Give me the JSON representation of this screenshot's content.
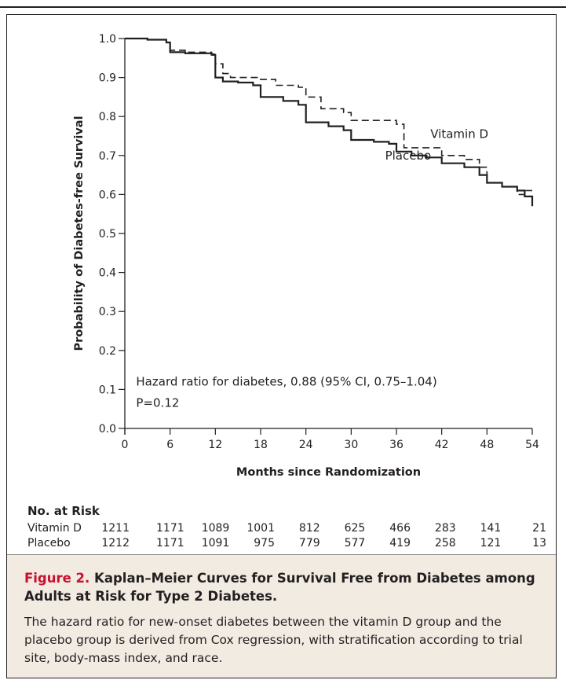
{
  "chart_data": {
    "type": "line",
    "step": true,
    "xlabel": "Months since Randomization",
    "ylabel": "Probability of Diabetes-free Survival",
    "xlim": [
      0,
      54
    ],
    "ylim": [
      0.0,
      1.0
    ],
    "xticks": [
      0,
      6,
      12,
      18,
      24,
      30,
      36,
      42,
      48,
      54
    ],
    "yticks": [
      0.0,
      0.1,
      0.2,
      0.3,
      0.4,
      0.5,
      0.6,
      0.7,
      0.8,
      0.9,
      1.0
    ],
    "ytick_labels": [
      "0.0",
      "0.1",
      "0.2",
      "0.3",
      "0.4",
      "0.5",
      "0.6",
      "0.7",
      "0.8",
      "0.9",
      "1.0"
    ],
    "grid": false,
    "series": [
      {
        "name": "Vitamin D",
        "style": "dashed",
        "x": [
          0,
          3,
          5.5,
          6,
          8,
          11.5,
          12,
          13,
          14,
          18,
          20,
          23,
          24,
          26,
          29,
          30,
          36,
          37,
          42,
          45,
          47,
          48,
          50,
          52,
          53,
          54
        ],
        "y": [
          1.0,
          0.997,
          0.99,
          0.97,
          0.965,
          0.96,
          0.935,
          0.91,
          0.9,
          0.895,
          0.88,
          0.875,
          0.85,
          0.82,
          0.81,
          0.79,
          0.78,
          0.72,
          0.7,
          0.69,
          0.67,
          0.63,
          0.62,
          0.6,
          0.61,
          0.61
        ]
      },
      {
        "name": "Placebo",
        "style": "solid",
        "x": [
          0,
          3,
          5.5,
          6,
          8,
          11.5,
          12,
          13,
          15,
          17,
          18,
          21,
          23,
          24,
          27,
          29,
          30,
          33,
          35,
          36,
          38,
          40,
          42,
          45,
          47,
          48,
          50,
          52,
          53,
          54
        ],
        "y": [
          1.0,
          0.997,
          0.99,
          0.965,
          0.962,
          0.958,
          0.9,
          0.89,
          0.887,
          0.88,
          0.85,
          0.84,
          0.83,
          0.785,
          0.775,
          0.765,
          0.74,
          0.735,
          0.73,
          0.71,
          0.7,
          0.695,
          0.68,
          0.67,
          0.65,
          0.63,
          0.62,
          0.61,
          0.595,
          0.57
        ]
      }
    ],
    "annotations": [
      {
        "text": "Vitamin D",
        "x": 40.5,
        "y": 0.745,
        "series": "Vitamin D"
      },
      {
        "text": "Placebo",
        "x": 34.5,
        "y": 0.69,
        "series": "Placebo"
      },
      {
        "text": "Hazard ratio for diabetes, 0.88 (95% CI, 0.75–1.04)",
        "x": 1.5,
        "y": 0.11
      },
      {
        "text": "P=0.12",
        "x": 1.5,
        "y": 0.055
      }
    ],
    "risk_table": {
      "title": "No. at Risk",
      "months": [
        0,
        6,
        12,
        18,
        24,
        30,
        36,
        42,
        48,
        54
      ],
      "rows": [
        {
          "label": "Vitamin D",
          "values": [
            "1211",
            "1171",
            "1089",
            "1001",
            "812",
            "625",
            "466",
            "283",
            "141",
            "21"
          ]
        },
        {
          "label": "Placebo",
          "values": [
            "1212",
            "1171",
            "1091",
            "975",
            "779",
            "577",
            "419",
            "258",
            "121",
            "13"
          ]
        }
      ]
    }
  },
  "caption": {
    "figure_label": "Figure 2.",
    "title": " Kaplan–Meier Curves for Survival Free from Diabetes among Adults at Risk for Type 2 Diabetes.",
    "text": "The hazard ratio for new-onset diabetes between the vitamin D group and the placebo group is derived from Cox regression, with stratification according to trial site, body-mass index, and race."
  },
  "colors": {
    "ink": "#231f20",
    "figure_label": "#c8102e",
    "caption_bg": "#f1ebe2"
  }
}
